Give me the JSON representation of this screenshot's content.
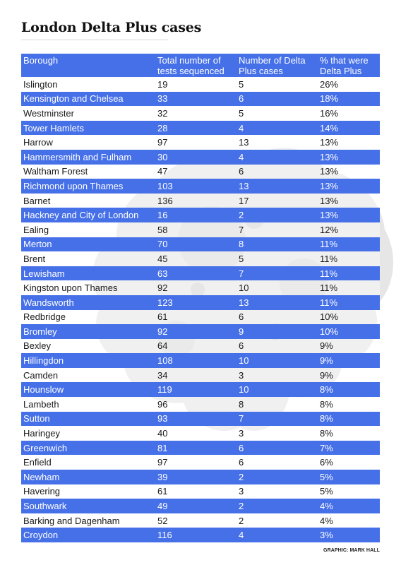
{
  "title": "London Delta Plus cases",
  "credit": "GRAPHIC: MARK HALL",
  "colors": {
    "accent": "#4670e8",
    "background_map": "#e6e6e6"
  },
  "chart_data": {
    "type": "table",
    "title": "London Delta Plus cases",
    "columns": [
      "Borough",
      "Total number of tests sequenced",
      "Number of Delta Plus cases",
      "% that were Delta Plus"
    ],
    "rows": [
      [
        "Islington",
        "19",
        "5",
        "26%"
      ],
      [
        "Kensington and Chelsea",
        "33",
        "6",
        "18%"
      ],
      [
        "Westminster",
        "32",
        "5",
        "16%"
      ],
      [
        "Tower Hamlets",
        "28",
        "4",
        "14%"
      ],
      [
        "Harrow",
        "97",
        "13",
        "13%"
      ],
      [
        "Hammersmith and Fulham",
        "30",
        "4",
        "13%"
      ],
      [
        "Waltham Forest",
        "47",
        "6",
        "13%"
      ],
      [
        "Richmond upon Thames",
        "103",
        "13",
        "13%"
      ],
      [
        "Barnet",
        "136",
        "17",
        "13%"
      ],
      [
        "Hackney and City of London",
        "16",
        "2",
        "13%"
      ],
      [
        "Ealing",
        "58",
        "7",
        "12%"
      ],
      [
        "Merton",
        "70",
        "8",
        "11%"
      ],
      [
        "Brent",
        "45",
        "5",
        "11%"
      ],
      [
        "Lewisham",
        "63",
        "7",
        "11%"
      ],
      [
        "Kingston upon Thames",
        "92",
        "10",
        "11%"
      ],
      [
        "Wandsworth",
        "123",
        "13",
        "11%"
      ],
      [
        "Redbridge",
        "61",
        "6",
        "10%"
      ],
      [
        "Bromley",
        "92",
        "9",
        "10%"
      ],
      [
        "Bexley",
        "64",
        "6",
        "9%"
      ],
      [
        "Hillingdon",
        "108",
        "10",
        "9%"
      ],
      [
        "Camden",
        "34",
        "3",
        "9%"
      ],
      [
        "Hounslow",
        "119",
        "10",
        "8%"
      ],
      [
        "Lambeth",
        "96",
        "8",
        "8%"
      ],
      [
        "Sutton",
        "93",
        "7",
        "8%"
      ],
      [
        "Haringey",
        "40",
        "3",
        "8%"
      ],
      [
        "Greenwich",
        "81",
        "6",
        "7%"
      ],
      [
        "Enfield",
        "97",
        "6",
        "6%"
      ],
      [
        "Newham",
        "39",
        "2",
        "5%"
      ],
      [
        "Havering",
        "61",
        "3",
        "5%"
      ],
      [
        "Southwark",
        "49",
        "2",
        "4%"
      ],
      [
        "Barking and Dagenham",
        "52",
        "2",
        "4%"
      ],
      [
        "Croydon",
        "116",
        "4",
        "3%"
      ]
    ]
  }
}
